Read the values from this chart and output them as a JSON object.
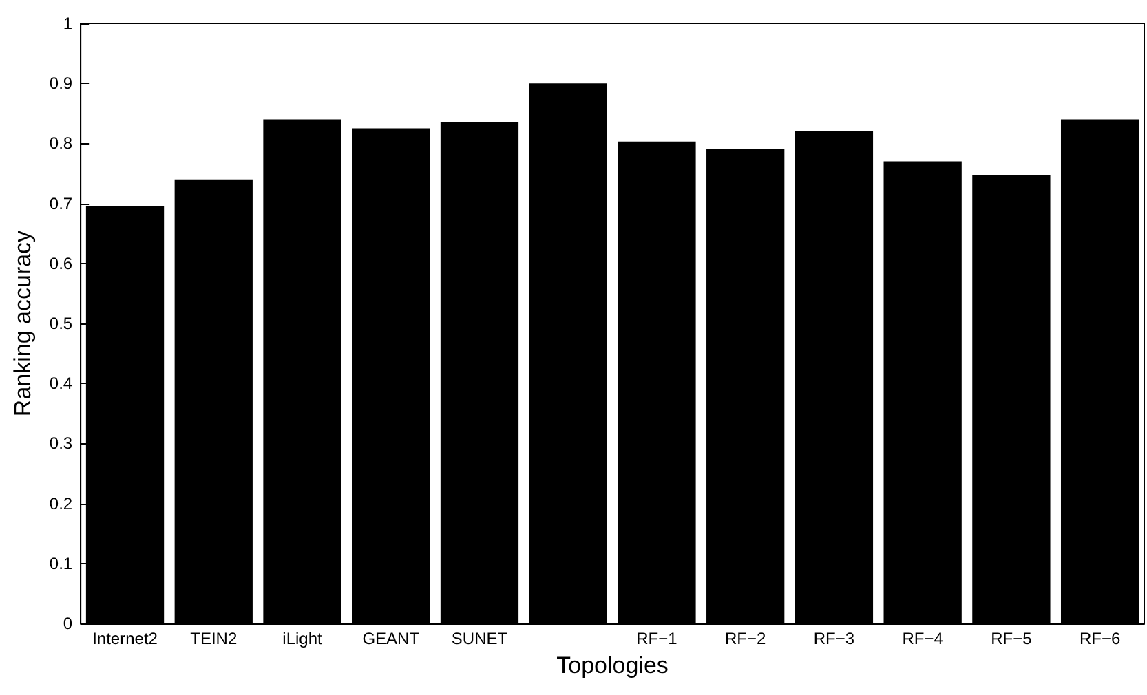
{
  "chart_data": {
    "type": "bar",
    "xlabel": "Topologies",
    "ylabel": "Ranking accuracy",
    "categories": [
      "Internet2",
      "TEIN2",
      "iLight",
      "GEANT",
      "SUNET",
      null,
      "RF−1",
      "RF−2",
      "RF−3",
      "RF−4",
      "RF−5",
      "RF−6"
    ],
    "values": [
      0.695,
      0.74,
      0.84,
      0.825,
      0.835,
      0.9,
      0.803,
      0.79,
      0.82,
      0.77,
      0.747,
      0.84
    ],
    "color": "#000000",
    "ylim": [
      0,
      1
    ],
    "yticks": [
      0,
      0.1,
      0.2,
      0.3,
      0.4,
      0.5,
      0.6,
      0.7,
      0.8,
      0.9,
      1
    ],
    "grid": false
  }
}
